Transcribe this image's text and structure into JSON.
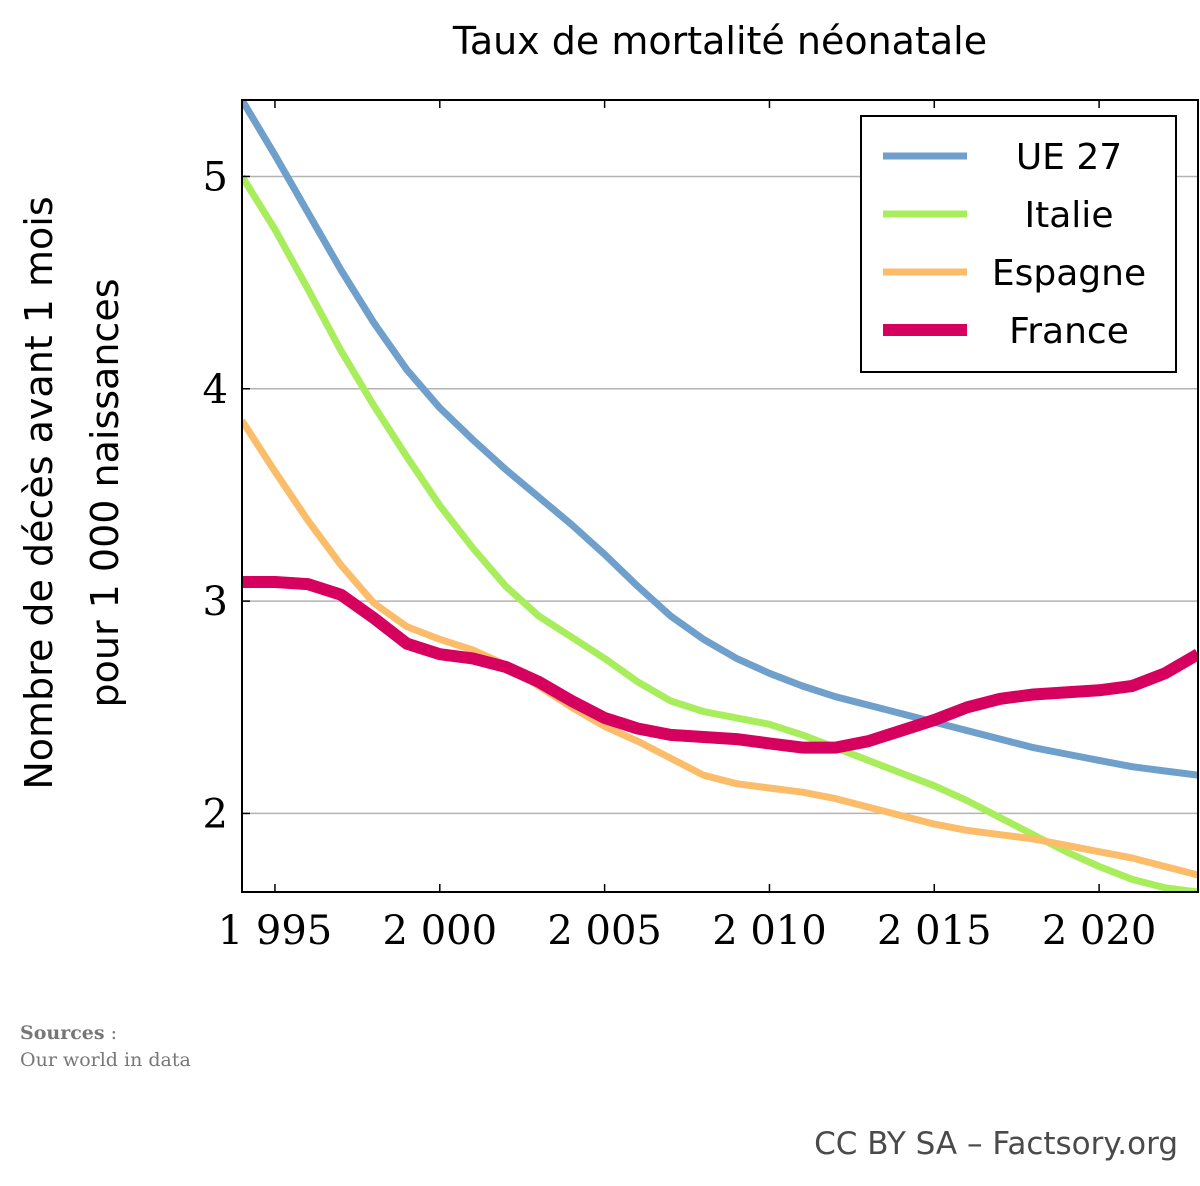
{
  "chart_data": {
    "type": "line",
    "title": "Taux de mortalité néonatale",
    "ylabel_line1": "Nombre de décès avant 1 mois",
    "ylabel_line2": "pour 1 000 naissances",
    "xlim": [
      1994,
      2023
    ],
    "ylim": [
      1.63,
      5.36
    ],
    "x_ticks": [
      1995,
      2000,
      2005,
      2010,
      2015,
      2020
    ],
    "x_tick_labels": [
      "1 995",
      "2 000",
      "2 005",
      "2 010",
      "2 015",
      "2 020"
    ],
    "y_ticks": [
      2,
      3,
      4,
      5
    ],
    "y_tick_labels": [
      "2",
      "3",
      "4",
      "5"
    ],
    "grid": "horizontal",
    "legend_position": "top-right",
    "x": [
      1994,
      1995,
      1996,
      1997,
      1998,
      1999,
      2000,
      2001,
      2002,
      2003,
      2004,
      2005,
      2006,
      2007,
      2008,
      2009,
      2010,
      2011,
      2012,
      2013,
      2014,
      2015,
      2016,
      2017,
      2018,
      2019,
      2020,
      2021,
      2022,
      2023
    ],
    "series": [
      {
        "name": "UE 27",
        "color": "#6f9fcb",
        "values": [
          5.36,
          5.1,
          4.83,
          4.56,
          4.31,
          4.09,
          3.91,
          3.76,
          3.62,
          3.49,
          3.36,
          3.22,
          3.07,
          2.93,
          2.82,
          2.73,
          2.66,
          2.6,
          2.55,
          2.51,
          2.47,
          2.43,
          2.39,
          2.35,
          2.31,
          2.28,
          2.25,
          2.22,
          2.2,
          2.18
        ]
      },
      {
        "name": "Italie",
        "color": "#a8ed5c",
        "values": [
          5.0,
          4.75,
          4.47,
          4.18,
          3.92,
          3.68,
          3.45,
          3.25,
          3.07,
          2.93,
          2.83,
          2.73,
          2.62,
          2.53,
          2.48,
          2.45,
          2.42,
          2.37,
          2.31,
          2.25,
          2.19,
          2.13,
          2.06,
          1.98,
          1.9,
          1.82,
          1.75,
          1.69,
          1.65,
          1.63
        ]
      },
      {
        "name": "Espagne",
        "color": "#fbbd6a",
        "values": [
          3.85,
          3.61,
          3.38,
          3.17,
          2.99,
          2.88,
          2.82,
          2.77,
          2.7,
          2.6,
          2.5,
          2.41,
          2.34,
          2.26,
          2.18,
          2.14,
          2.12,
          2.1,
          2.07,
          2.03,
          1.99,
          1.95,
          1.92,
          1.9,
          1.88,
          1.85,
          1.82,
          1.79,
          1.75,
          1.71
        ]
      },
      {
        "name": "France",
        "color": "#d6005e",
        "values": [
          3.09,
          3.09,
          3.08,
          3.03,
          2.92,
          2.8,
          2.75,
          2.73,
          2.69,
          2.62,
          2.53,
          2.45,
          2.4,
          2.37,
          2.36,
          2.35,
          2.33,
          2.31,
          2.31,
          2.34,
          2.39,
          2.44,
          2.5,
          2.54,
          2.56,
          2.57,
          2.58,
          2.6,
          2.66,
          2.75
        ]
      }
    ]
  },
  "sources_label": "Sources",
  "sources_sep": " :",
  "sources_text": "Our world in data",
  "credit": "CC BY SA – Factsory.org"
}
